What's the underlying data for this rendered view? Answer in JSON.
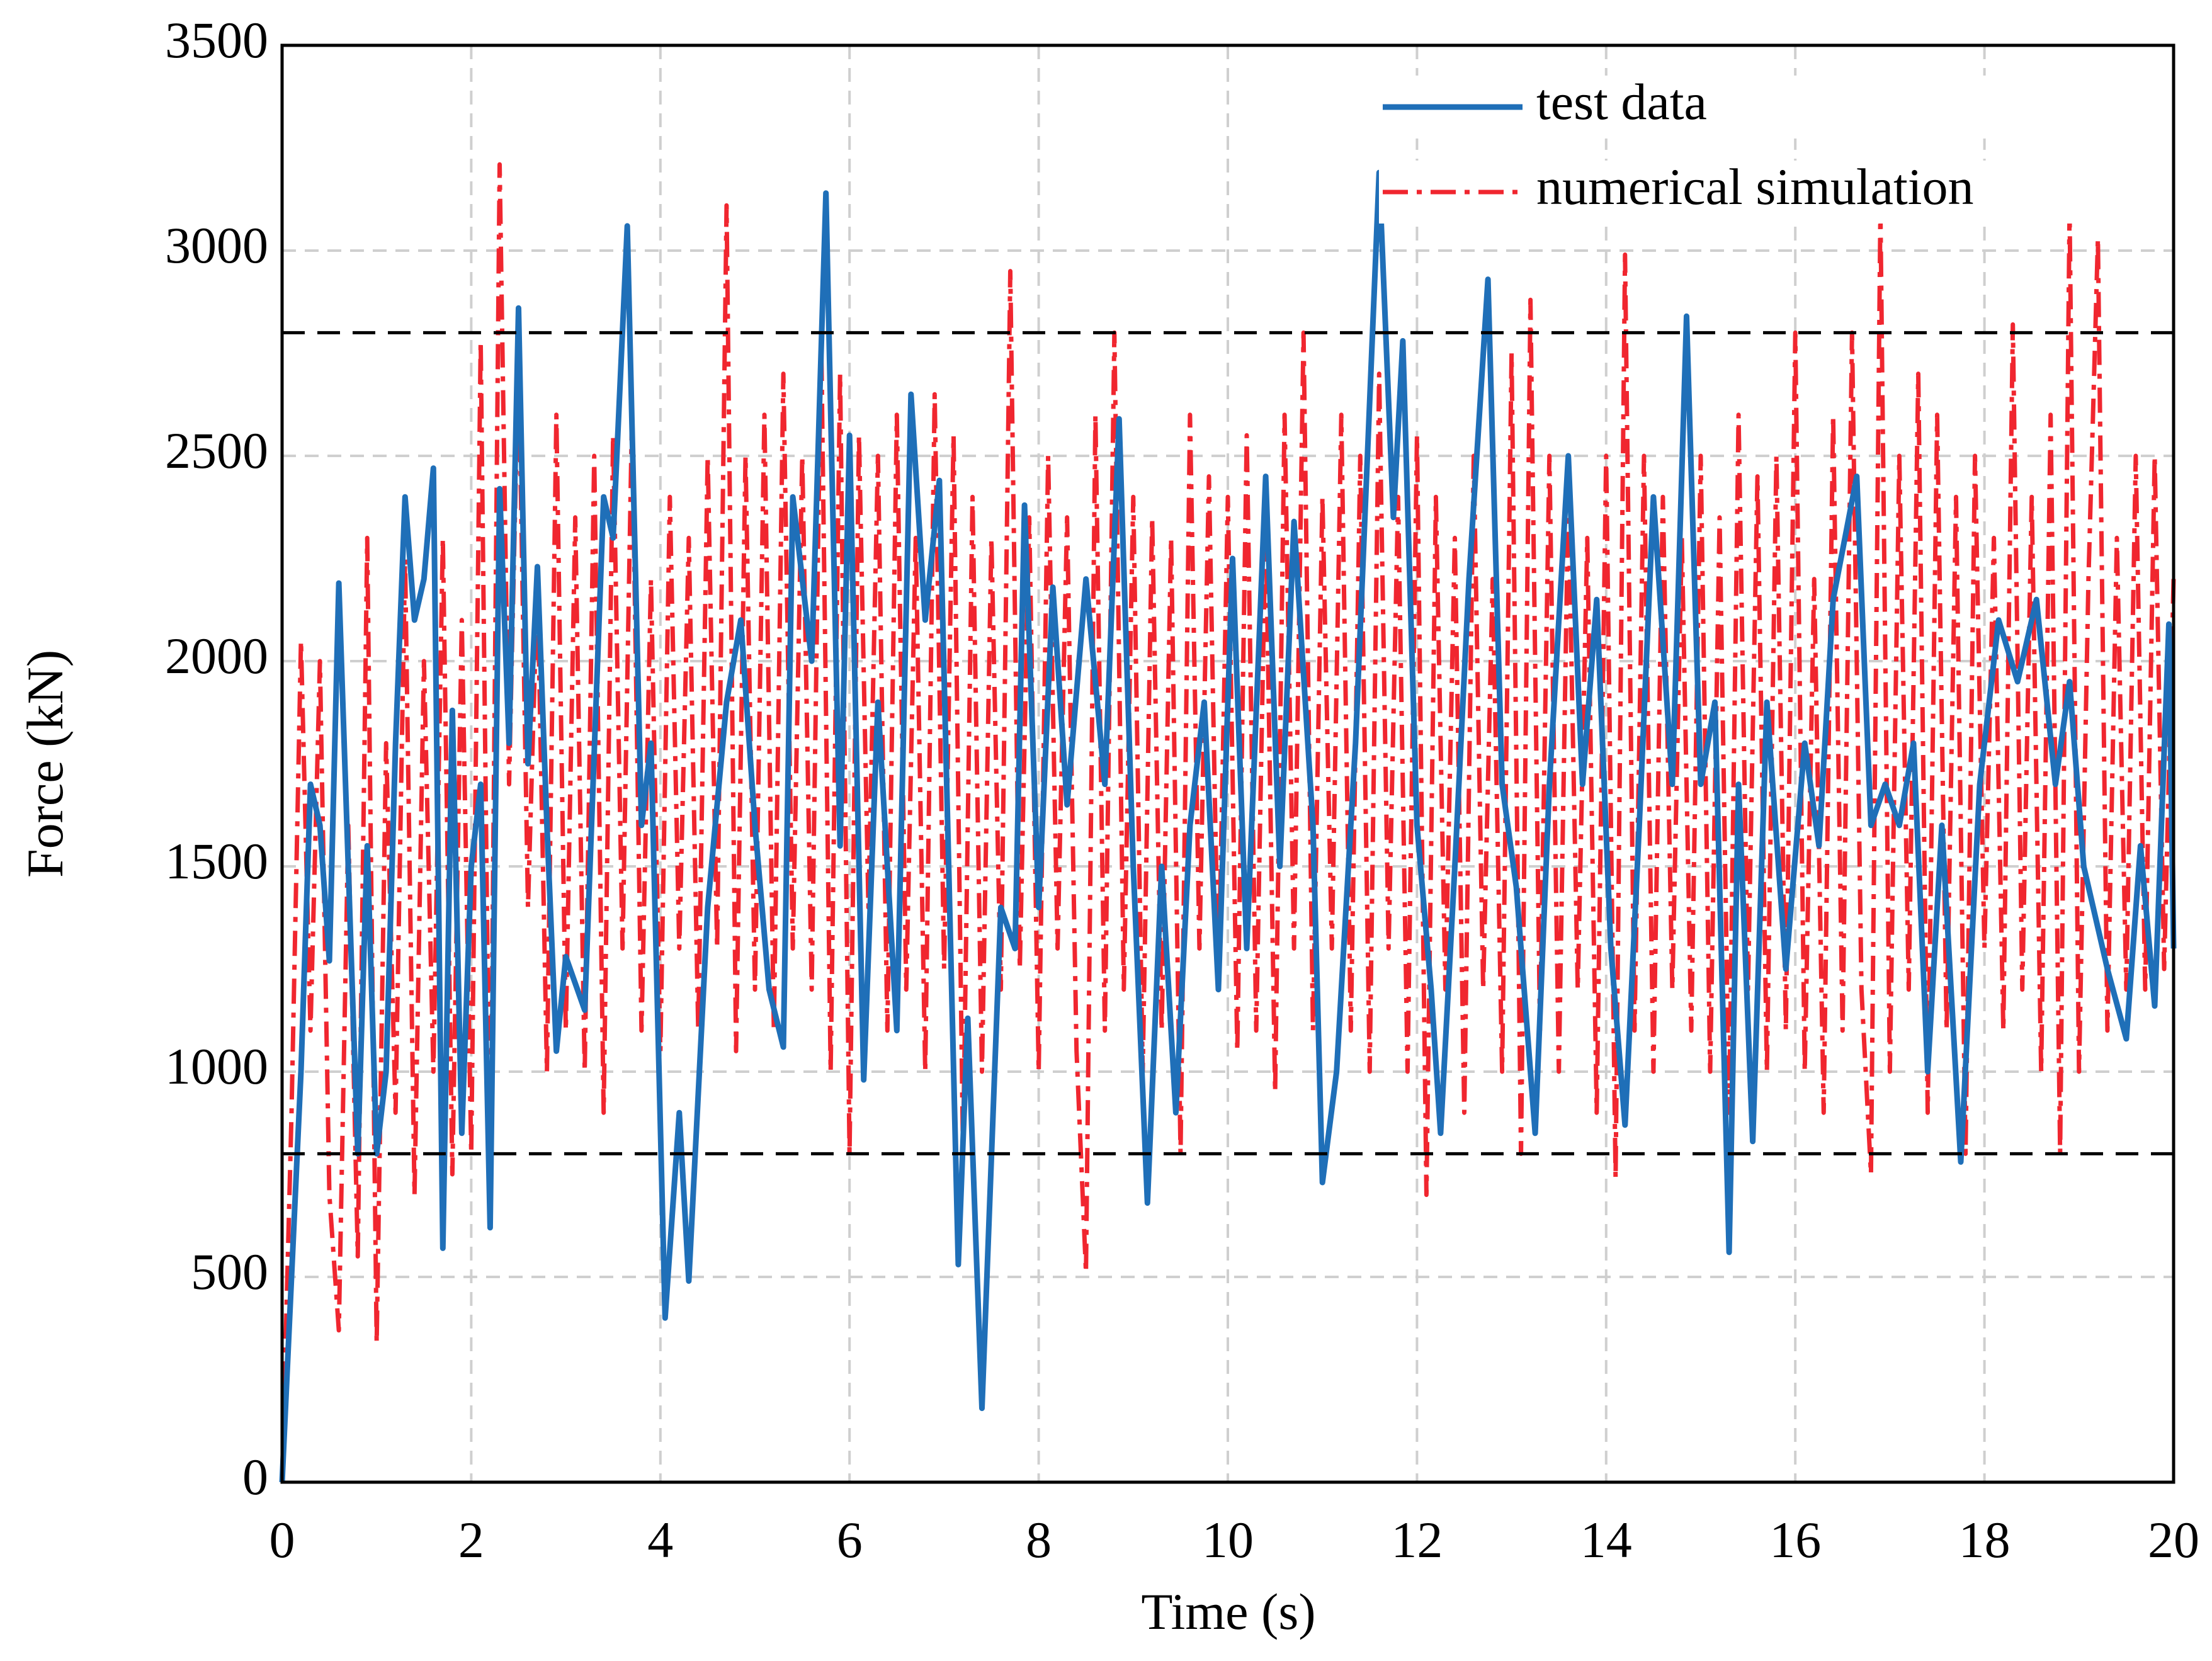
{
  "chart_data": {
    "type": "line",
    "xlabel": "Time (s)",
    "ylabel": "Force (kN)",
    "xlim": [
      0,
      20
    ],
    "xticks": [
      0,
      2,
      4,
      6,
      8,
      10,
      12,
      14,
      16,
      18,
      20
    ],
    "ylim": [
      0,
      3500
    ],
    "yticks": [
      0,
      500,
      1000,
      1500,
      2000,
      2500,
      3000,
      3500
    ],
    "grid": true,
    "legend": "upper right",
    "hlines": [
      800,
      2800
    ],
    "hline_color": "#000000",
    "series": [
      {
        "name": "test data",
        "color": "#1f6fb8",
        "style": "solid",
        "x": [
          0,
          0.1,
          0.2,
          0.3,
          0.4,
          0.5,
          0.6,
          0.7,
          0.8,
          0.9,
          1.0,
          1.1,
          1.2,
          1.3,
          1.4,
          1.5,
          1.6,
          1.7,
          1.8,
          1.9,
          2.0,
          2.1,
          2.2,
          2.3,
          2.4,
          2.5,
          2.6,
          2.7,
          2.8,
          2.9,
          3.0,
          3.2,
          3.4,
          3.5,
          3.65,
          3.8,
          3.9,
          4.05,
          4.2,
          4.3,
          4.5,
          4.7,
          4.85,
          5.0,
          5.15,
          5.3,
          5.4,
          5.6,
          5.75,
          5.9,
          6.0,
          6.15,
          6.3,
          6.5,
          6.65,
          6.8,
          6.95,
          7.15,
          7.25,
          7.4,
          7.6,
          7.75,
          7.85,
          8.0,
          8.15,
          8.3,
          8.5,
          8.7,
          8.85,
          9.0,
          9.15,
          9.3,
          9.45,
          9.6,
          9.75,
          9.9,
          10.05,
          10.2,
          10.4,
          10.55,
          10.7,
          10.9,
          11.0,
          11.15,
          11.35,
          11.6,
          11.75,
          11.85,
          12.0,
          12.15,
          12.25,
          12.4,
          12.55,
          12.75,
          12.9,
          13.05,
          13.25,
          13.4,
          13.6,
          13.75,
          13.9,
          14.05,
          14.2,
          14.35,
          14.5,
          14.7,
          14.85,
          15.0,
          15.15,
          15.3,
          15.4,
          15.55,
          15.7,
          15.9,
          16.1,
          16.25,
          16.4,
          16.65,
          16.8,
          16.95,
          17.1,
          17.25,
          17.4,
          17.55,
          17.75,
          17.95,
          18.15,
          18.35,
          18.55,
          18.75,
          18.9,
          19.05,
          19.3,
          19.5,
          19.65,
          19.8,
          19.95,
          20.0
        ],
        "values": [
          0,
          500,
          1000,
          1700,
          1600,
          1270,
          2190,
          1500,
          800,
          1550,
          800,
          1000,
          1800,
          2400,
          2100,
          2200,
          2470,
          570,
          1880,
          850,
          1500,
          1700,
          620,
          2420,
          1800,
          2860,
          1750,
          2230,
          1600,
          1050,
          1280,
          1150,
          2400,
          2300,
          3060,
          1600,
          1800,
          400,
          900,
          490,
          1400,
          1900,
          2100,
          1600,
          1200,
          1060,
          2400,
          2000,
          3140,
          1550,
          2550,
          980,
          1900,
          1100,
          2650,
          2100,
          2440,
          530,
          1130,
          180,
          1400,
          1300,
          2380,
          1400,
          2180,
          1650,
          2200,
          1700,
          2590,
          1500,
          680,
          1500,
          900,
          1600,
          1900,
          1200,
          2250,
          1300,
          2450,
          1500,
          2340,
          1600,
          730,
          1000,
          1800,
          3190,
          2350,
          2780,
          1600,
          1200,
          850,
          1500,
          2200,
          2930,
          1700,
          1450,
          850,
          1700,
          2500,
          1700,
          2150,
          1300,
          870,
          1600,
          2400,
          1700,
          2840,
          1700,
          1900,
          560,
          1700,
          830,
          1900,
          1250,
          1800,
          1550,
          2150,
          2450,
          1600,
          1700,
          1600,
          1800,
          1000,
          1600,
          780,
          1700,
          2100,
          1950,
          2150,
          1700,
          1950,
          1500,
          1250,
          1080,
          1550,
          1160,
          2090,
          1300
        ]
      },
      {
        "name": "numerical simulation",
        "color": "#f0262f",
        "style": "dashdot",
        "x": [
          0,
          0.1,
          0.2,
          0.3,
          0.4,
          0.5,
          0.6,
          0.7,
          0.8,
          0.9,
          1.0,
          1.1,
          1.2,
          1.3,
          1.4,
          1.5,
          1.6,
          1.7,
          1.8,
          1.9,
          2.0,
          2.1,
          2.2,
          2.3,
          2.4,
          2.5,
          2.6,
          2.7,
          2.8,
          2.9,
          3.0,
          3.1,
          3.2,
          3.3,
          3.4,
          3.5,
          3.6,
          3.7,
          3.8,
          3.9,
          4.0,
          4.1,
          4.2,
          4.3,
          4.4,
          4.5,
          4.6,
          4.7,
          4.8,
          4.9,
          5.0,
          5.1,
          5.2,
          5.3,
          5.4,
          5.5,
          5.6,
          5.7,
          5.8,
          5.9,
          6.0,
          6.1,
          6.2,
          6.3,
          6.4,
          6.5,
          6.6,
          6.7,
          6.8,
          6.9,
          7.0,
          7.1,
          7.2,
          7.3,
          7.4,
          7.5,
          7.6,
          7.7,
          7.8,
          7.9,
          8.0,
          8.1,
          8.2,
          8.3,
          8.4,
          8.5,
          8.6,
          8.7,
          8.8,
          8.9,
          9.0,
          9.1,
          9.2,
          9.3,
          9.4,
          9.5,
          9.6,
          9.7,
          9.8,
          9.9,
          10.0,
          10.1,
          10.2,
          10.3,
          10.4,
          10.5,
          10.6,
          10.7,
          10.8,
          10.9,
          11.0,
          11.1,
          11.2,
          11.3,
          11.4,
          11.5,
          11.6,
          11.7,
          11.8,
          11.9,
          12.0,
          12.1,
          12.2,
          12.3,
          12.4,
          12.5,
          12.6,
          12.7,
          12.8,
          12.9,
          13.0,
          13.1,
          13.2,
          13.3,
          13.4,
          13.5,
          13.6,
          13.7,
          13.8,
          13.9,
          14.0,
          14.1,
          14.2,
          14.3,
          14.4,
          14.5,
          14.6,
          14.7,
          14.8,
          14.9,
          15.0,
          15.1,
          15.2,
          15.3,
          15.4,
          15.5,
          15.6,
          15.7,
          15.8,
          15.9,
          16.0,
          16.1,
          16.2,
          16.3,
          16.4,
          16.5,
          16.6,
          16.7,
          16.8,
          16.9,
          17.0,
          17.1,
          17.2,
          17.3,
          17.4,
          17.5,
          17.6,
          17.7,
          17.8,
          17.9,
          18.0,
          18.1,
          18.2,
          18.3,
          18.4,
          18.5,
          18.6,
          18.7,
          18.8,
          18.9,
          19.0,
          19.1,
          19.2,
          19.3,
          19.4,
          19.5,
          19.6,
          19.7,
          19.8,
          19.9,
          20.0
        ],
        "values": [
          0,
          900,
          2050,
          1100,
          2000,
          700,
          370,
          1600,
          550,
          2300,
          340,
          1800,
          900,
          2250,
          700,
          2000,
          1000,
          2300,
          750,
          2100,
          800,
          2780,
          700,
          3210,
          1700,
          2750,
          1400,
          2200,
          1000,
          2600,
          1100,
          2350,
          1000,
          2500,
          900,
          2550,
          1300,
          2600,
          1100,
          2200,
          1050,
          2400,
          1300,
          2300,
          1100,
          2500,
          1300,
          3110,
          1050,
          2500,
          1200,
          2600,
          1100,
          2700,
          1300,
          2500,
          1200,
          2800,
          1000,
          2700,
          800,
          2550,
          1400,
          2500,
          1100,
          2600,
          1200,
          2300,
          1000,
          2650,
          1250,
          2550,
          800,
          2400,
          1000,
          2300,
          1200,
          2950,
          1250,
          2350,
          1000,
          2500,
          1300,
          2350,
          1050,
          510,
          2600,
          1100,
          2800,
          1200,
          2400,
          1000,
          2350,
          1100,
          2300,
          800,
          2600,
          1300,
          2450,
          1200,
          2400,
          1050,
          2550,
          1100,
          2350,
          950,
          2600,
          1300,
          2800,
          1100,
          2400,
          1300,
          2600,
          1100,
          2500,
          1000,
          2700,
          1300,
          2400,
          1000,
          2550,
          700,
          2400,
          1200,
          2300,
          900,
          2500,
          1200,
          2200,
          1000,
          2750,
          800,
          2880,
          1100,
          2500,
          1000,
          2400,
          1200,
          2300,
          900,
          2500,
          740,
          2990,
          1100,
          2500,
          1000,
          2400,
          1200,
          2300,
          1100,
          2500,
          1000,
          2350,
          900,
          2600,
          1200,
          2450,
          1000,
          2500,
          1100,
          2800,
          1000,
          2200,
          900,
          2600,
          1100,
          2800,
          1200,
          750,
          3100,
          1000,
          2500,
          1200,
          2700,
          900,
          2600,
          1100,
          2400,
          800,
          2500,
          1300,
          2300,
          1100,
          2820,
          1200,
          2400,
          1000,
          2600,
          800,
          3100,
          1000,
          2200,
          3030,
          1100,
          2300,
          1200,
          2500,
          1200,
          2500,
          1250,
          2200
        ]
      }
    ]
  }
}
